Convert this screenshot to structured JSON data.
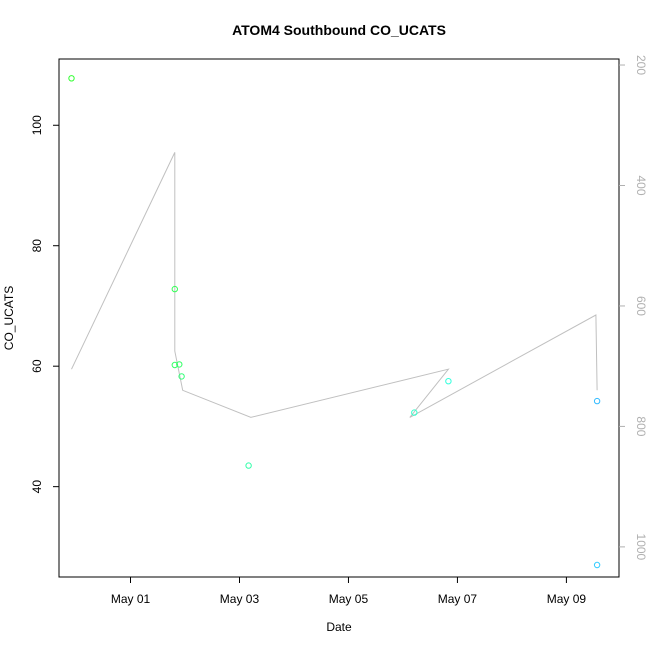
{
  "chart_data": {
    "type": "scatter",
    "title": "ATOM4 Southbound CO_UCATS",
    "xlabel": "Date",
    "ylabel": "CO_UCATS",
    "x_ticks": [
      "May 01",
      "May 03",
      "May 05",
      "May 07",
      "May 09"
    ],
    "y_ticks": [
      "40",
      "60",
      "80",
      "100"
    ],
    "y_right_ticks": [
      "200",
      "400",
      "600",
      "800",
      "1000"
    ],
    "xlim": [
      "Apr 29 16:30",
      "May 09 23:10"
    ],
    "ylim": [
      25,
      111
    ],
    "y_right_lim": [
      1050,
      190
    ],
    "y_right_axis_reversed": true,
    "grid": false,
    "colors": {
      "line": "#c0c0c0",
      "right_axis": "#b0b0b0",
      "frame": "#000000"
    },
    "series": [
      {
        "type": "points",
        "points": [
          {
            "x": "Apr 29 22:00",
            "y": 107.8,
            "color": "#33ff33"
          },
          {
            "x": "May 01 19:30",
            "y": 72.8,
            "color": "#33ff55"
          },
          {
            "x": "May 01 19:30",
            "y": 60.2,
            "color": "#33ff66"
          },
          {
            "x": "May 01 21:30",
            "y": 60.3,
            "color": "#33ff66"
          },
          {
            "x": "May 01 22:30",
            "y": 58.3,
            "color": "#33ff77"
          },
          {
            "x": "May 03 04:00",
            "y": 43.5,
            "color": "#33ffaa"
          },
          {
            "x": "May 06 05:00",
            "y": 52.3,
            "color": "#33ffcc"
          },
          {
            "x": "May 06 20:00",
            "y": 57.5,
            "color": "#33ffdd"
          },
          {
            "x": "May 09 13:30",
            "y": 54.2,
            "color": "#33bbff"
          },
          {
            "x": "May 09 13:30",
            "y": 27.0,
            "color": "#33ccff"
          }
        ]
      },
      {
        "type": "line",
        "axis": "right",
        "points": [
          {
            "x": "Apr 29 22:00",
            "y": 705
          },
          {
            "x": "May 01 19:30",
            "y": 345
          },
          {
            "x": "May 01 19:30",
            "y": 675
          },
          {
            "x": "May 01 23:00",
            "y": 740
          },
          {
            "x": "May 03 05:00",
            "y": 785
          },
          {
            "x": "May 06 20:00",
            "y": 705
          },
          {
            "x": "May 06 03:00",
            "y": 785
          },
          {
            "x": "May 09 13:00",
            "y": 615
          },
          {
            "x": "May 09 13:30",
            "y": 740
          }
        ]
      }
    ]
  }
}
